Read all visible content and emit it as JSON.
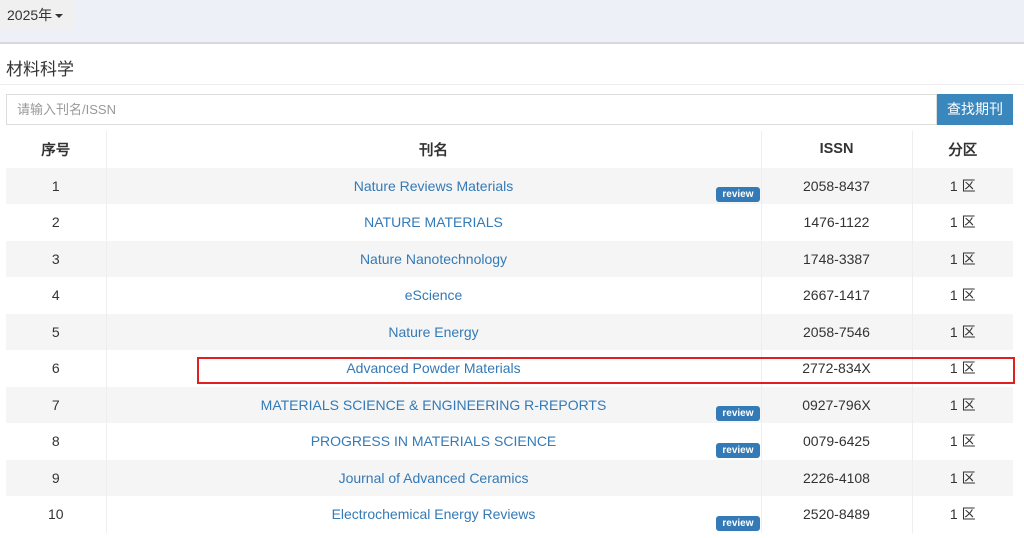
{
  "topbar": {
    "year": "2025年"
  },
  "section_title": "材料科学",
  "search": {
    "placeholder": "请输入刊名/ISSN",
    "button": "查找期刊"
  },
  "table": {
    "headers": [
      "序号",
      "刊名",
      "ISSN",
      "分区"
    ],
    "rows": [
      {
        "no": "1",
        "name": "Nature Reviews Materials",
        "badge": "review",
        "issn": "2058-8437",
        "zone": "1 区"
      },
      {
        "no": "2",
        "name": "NATURE MATERIALS",
        "badge": "",
        "issn": "1476-1122",
        "zone": "1 区"
      },
      {
        "no": "3",
        "name": "Nature Nanotechnology",
        "badge": "",
        "issn": "1748-3387",
        "zone": "1 区"
      },
      {
        "no": "4",
        "name": "eScience",
        "badge": "",
        "issn": "2667-1417",
        "zone": "1 区"
      },
      {
        "no": "5",
        "name": "Nature Energy",
        "badge": "",
        "issn": "2058-7546",
        "zone": "1 区"
      },
      {
        "no": "6",
        "name": "Advanced Powder Materials",
        "badge": "",
        "issn": "2772-834X",
        "zone": "1 区"
      },
      {
        "no": "7",
        "name": "MATERIALS SCIENCE & ENGINEERING R-REPORTS",
        "badge": "review",
        "issn": "0927-796X",
        "zone": "1 区"
      },
      {
        "no": "8",
        "name": "PROGRESS IN MATERIALS SCIENCE",
        "badge": "review",
        "issn": "0079-6425",
        "zone": "1 区"
      },
      {
        "no": "9",
        "name": "Journal of Advanced Ceramics",
        "badge": "",
        "issn": "2226-4108",
        "zone": "1 区"
      },
      {
        "no": "10",
        "name": "Electrochemical Energy Reviews",
        "badge": "review",
        "issn": "2520-8489",
        "zone": "1 区"
      }
    ]
  },
  "highlight_row": "6",
  "colors": {
    "link": "#337ab7",
    "button": "#3a87be",
    "highlight": "#e02020"
  }
}
